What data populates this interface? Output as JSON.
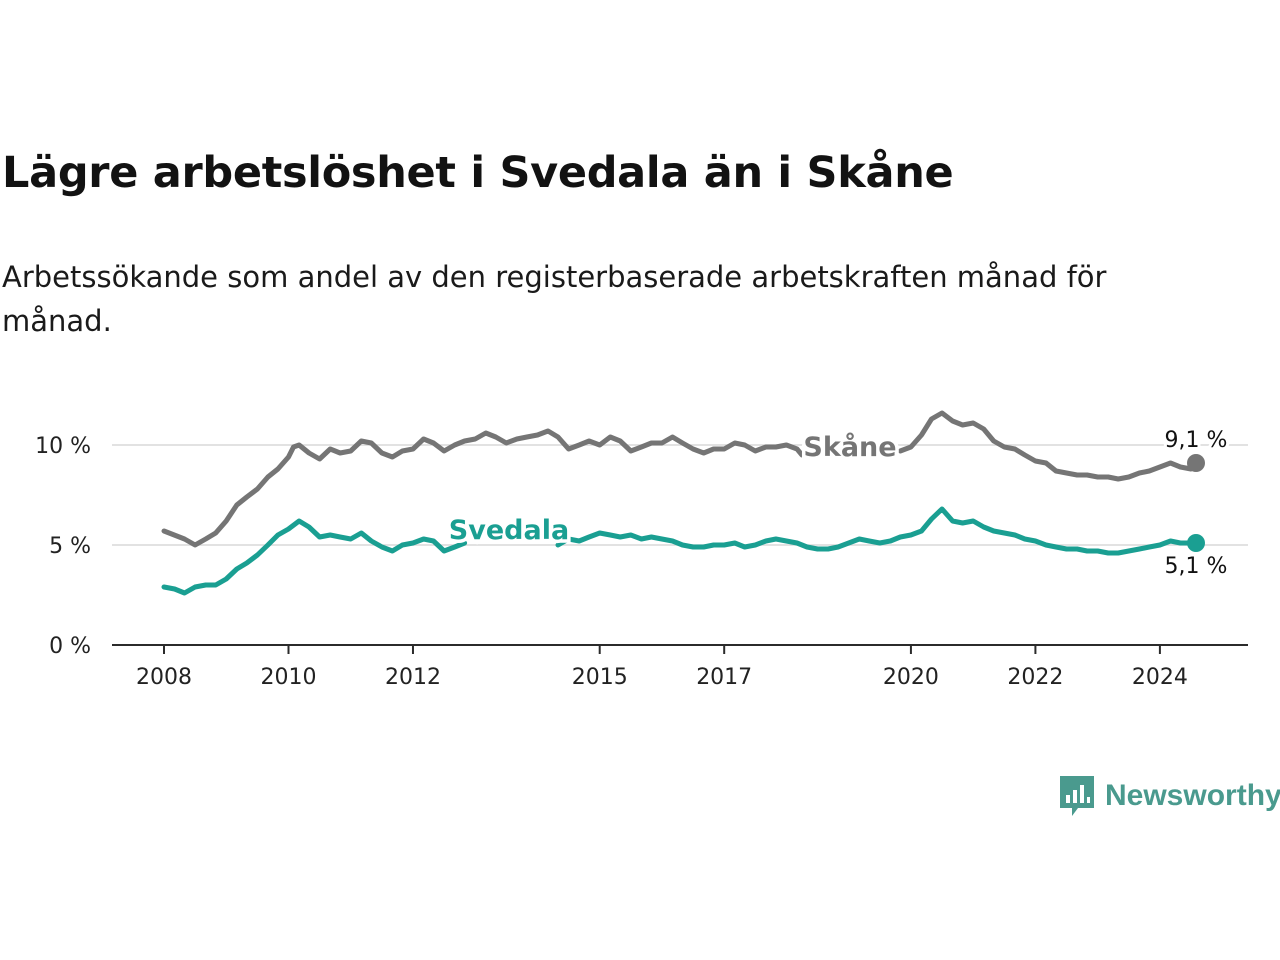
{
  "header": {
    "title": "Lägre arbetslöshet i Svedala än i Skåne",
    "subtitle": "Arbetssökande som andel av den registerbaserade arbetskraften månad för månad."
  },
  "brand": {
    "name": "Newsworthy",
    "icon": "newsworthy-logo-icon",
    "color": "#4a9a8e"
  },
  "chart_data": {
    "type": "line",
    "title": "Lägre arbetslöshet i Svedala än i Skåne",
    "subtitle": "Arbetssökande som andel av den registerbaserade arbetskraften månad för månad.",
    "xlabel": "",
    "ylabel": "",
    "ylim": [
      0,
      12
    ],
    "xlim": [
      2007.25,
      2025.5
    ],
    "yticks": [
      0,
      5,
      10
    ],
    "ytick_labels": [
      "0 %",
      "5 %",
      "10 %"
    ],
    "xticks": [
      2008,
      2010,
      2012,
      2015,
      2017,
      2020,
      2022,
      2024
    ],
    "xtick_labels": [
      "2008",
      "2010",
      "2012",
      "2015",
      "2017",
      "2020",
      "2022",
      "2024"
    ],
    "grid": true,
    "series": [
      {
        "name": "Skåne",
        "color": "#757575",
        "end_label": "9,1 %",
        "points": [
          [
            2008.0,
            5.7
          ],
          [
            2008.33,
            5.3
          ],
          [
            2008.5,
            5.0
          ],
          [
            2008.67,
            5.3
          ],
          [
            2008.83,
            5.6
          ],
          [
            2009.0,
            6.2
          ],
          [
            2009.17,
            7.0
          ],
          [
            2009.33,
            7.4
          ],
          [
            2009.5,
            7.8
          ],
          [
            2009.67,
            8.4
          ],
          [
            2009.83,
            8.8
          ],
          [
            2010.0,
            9.4
          ],
          [
            2010.08,
            9.9
          ],
          [
            2010.17,
            10.0
          ],
          [
            2010.33,
            9.6
          ],
          [
            2010.5,
            9.3
          ],
          [
            2010.67,
            9.8
          ],
          [
            2010.83,
            9.6
          ],
          [
            2011.0,
            9.7
          ],
          [
            2011.17,
            10.2
          ],
          [
            2011.33,
            10.1
          ],
          [
            2011.5,
            9.6
          ],
          [
            2011.67,
            9.4
          ],
          [
            2011.83,
            9.7
          ],
          [
            2012.0,
            9.8
          ],
          [
            2012.17,
            10.3
          ],
          [
            2012.33,
            10.1
          ],
          [
            2012.5,
            9.7
          ],
          [
            2012.67,
            10.0
          ],
          [
            2012.83,
            10.2
          ],
          [
            2013.0,
            10.3
          ],
          [
            2013.17,
            10.6
          ],
          [
            2013.33,
            10.4
          ],
          [
            2013.5,
            10.1
          ],
          [
            2013.67,
            10.3
          ],
          [
            2013.83,
            10.4
          ],
          [
            2014.0,
            10.5
          ],
          [
            2014.17,
            10.7
          ],
          [
            2014.33,
            10.4
          ],
          [
            2014.5,
            9.8
          ],
          [
            2014.67,
            10.0
          ],
          [
            2014.83,
            10.2
          ],
          [
            2015.0,
            10.0
          ],
          [
            2015.17,
            10.4
          ],
          [
            2015.33,
            10.2
          ],
          [
            2015.5,
            9.7
          ],
          [
            2015.67,
            9.9
          ],
          [
            2015.83,
            10.1
          ],
          [
            2016.0,
            10.1
          ],
          [
            2016.17,
            10.4
          ],
          [
            2016.33,
            10.1
          ],
          [
            2016.5,
            9.8
          ],
          [
            2016.67,
            9.6
          ],
          [
            2016.83,
            9.8
          ],
          [
            2017.0,
            9.8
          ],
          [
            2017.17,
            10.1
          ],
          [
            2017.33,
            10.0
          ],
          [
            2017.5,
            9.7
          ],
          [
            2017.67,
            9.9
          ],
          [
            2017.83,
            9.9
          ],
          [
            2018.0,
            10.0
          ],
          [
            2018.17,
            9.8
          ],
          [
            2018.25,
            9.5
          ]
        ],
        "points_after_label": [
          [
            2019.83,
            9.7
          ],
          [
            2020.0,
            9.9
          ],
          [
            2020.17,
            10.5
          ],
          [
            2020.33,
            11.3
          ],
          [
            2020.5,
            11.6
          ],
          [
            2020.67,
            11.2
          ],
          [
            2020.83,
            11.0
          ],
          [
            2021.0,
            11.1
          ],
          [
            2021.17,
            10.8
          ],
          [
            2021.33,
            10.2
          ],
          [
            2021.5,
            9.9
          ],
          [
            2021.67,
            9.8
          ],
          [
            2021.83,
            9.5
          ],
          [
            2022.0,
            9.2
          ],
          [
            2022.17,
            9.1
          ],
          [
            2022.33,
            8.7
          ],
          [
            2022.5,
            8.6
          ],
          [
            2022.67,
            8.5
          ],
          [
            2022.83,
            8.5
          ],
          [
            2023.0,
            8.4
          ],
          [
            2023.17,
            8.4
          ],
          [
            2023.33,
            8.3
          ],
          [
            2023.5,
            8.4
          ],
          [
            2023.67,
            8.6
          ],
          [
            2023.83,
            8.7
          ],
          [
            2024.0,
            8.9
          ],
          [
            2024.17,
            9.1
          ],
          [
            2024.33,
            8.9
          ],
          [
            2024.5,
            8.8
          ],
          [
            2024.58,
            9.1
          ]
        ]
      },
      {
        "name": "Svedala",
        "color": "#1a9f92",
        "end_label": "5,1 %",
        "points": [
          [
            2008.0,
            2.9
          ],
          [
            2008.17,
            2.8
          ],
          [
            2008.33,
            2.6
          ],
          [
            2008.5,
            2.9
          ],
          [
            2008.67,
            3.0
          ],
          [
            2008.83,
            3.0
          ],
          [
            2009.0,
            3.3
          ],
          [
            2009.17,
            3.8
          ],
          [
            2009.33,
            4.1
          ],
          [
            2009.5,
            4.5
          ],
          [
            2009.67,
            5.0
          ],
          [
            2009.83,
            5.5
          ],
          [
            2010.0,
            5.8
          ],
          [
            2010.17,
            6.2
          ],
          [
            2010.33,
            5.9
          ],
          [
            2010.5,
            5.4
          ],
          [
            2010.67,
            5.5
          ],
          [
            2010.83,
            5.4
          ],
          [
            2011.0,
            5.3
          ],
          [
            2011.17,
            5.6
          ],
          [
            2011.33,
            5.2
          ],
          [
            2011.5,
            4.9
          ],
          [
            2011.67,
            4.7
          ],
          [
            2011.83,
            5.0
          ],
          [
            2012.0,
            5.1
          ],
          [
            2012.17,
            5.3
          ],
          [
            2012.33,
            5.2
          ],
          [
            2012.5,
            4.7
          ],
          [
            2012.67,
            4.9
          ],
          [
            2012.83,
            5.1
          ]
        ],
        "points_after_label": [
          [
            2014.33,
            5.0
          ],
          [
            2014.5,
            5.3
          ],
          [
            2014.67,
            5.2
          ],
          [
            2014.83,
            5.4
          ],
          [
            2015.0,
            5.6
          ],
          [
            2015.17,
            5.5
          ],
          [
            2015.33,
            5.4
          ],
          [
            2015.5,
            5.5
          ],
          [
            2015.67,
            5.3
          ],
          [
            2015.83,
            5.4
          ],
          [
            2016.0,
            5.3
          ],
          [
            2016.17,
            5.2
          ],
          [
            2016.33,
            5.0
          ],
          [
            2016.5,
            4.9
          ],
          [
            2016.67,
            4.9
          ],
          [
            2016.83,
            5.0
          ],
          [
            2017.0,
            5.0
          ],
          [
            2017.17,
            5.1
          ],
          [
            2017.33,
            4.9
          ],
          [
            2017.5,
            5.0
          ],
          [
            2017.67,
            5.2
          ],
          [
            2017.83,
            5.3
          ],
          [
            2018.0,
            5.2
          ],
          [
            2018.17,
            5.1
          ],
          [
            2018.33,
            4.9
          ],
          [
            2018.5,
            4.8
          ],
          [
            2018.67,
            4.8
          ],
          [
            2018.83,
            4.9
          ],
          [
            2019.0,
            5.1
          ],
          [
            2019.17,
            5.3
          ],
          [
            2019.33,
            5.2
          ],
          [
            2019.5,
            5.1
          ],
          [
            2019.67,
            5.2
          ],
          [
            2019.83,
            5.4
          ],
          [
            2020.0,
            5.5
          ],
          [
            2020.17,
            5.7
          ],
          [
            2020.33,
            6.3
          ],
          [
            2020.5,
            6.8
          ],
          [
            2020.67,
            6.2
          ],
          [
            2020.83,
            6.1
          ],
          [
            2021.0,
            6.2
          ],
          [
            2021.17,
            5.9
          ],
          [
            2021.33,
            5.7
          ],
          [
            2021.5,
            5.6
          ],
          [
            2021.67,
            5.5
          ],
          [
            2021.83,
            5.3
          ],
          [
            2022.0,
            5.2
          ],
          [
            2022.17,
            5.0
          ],
          [
            2022.33,
            4.9
          ],
          [
            2022.5,
            4.8
          ],
          [
            2022.67,
            4.8
          ],
          [
            2022.83,
            4.7
          ],
          [
            2023.0,
            4.7
          ],
          [
            2023.17,
            4.6
          ],
          [
            2023.33,
            4.6
          ],
          [
            2023.5,
            4.7
          ],
          [
            2023.67,
            4.8
          ],
          [
            2023.83,
            4.9
          ],
          [
            2024.0,
            5.0
          ],
          [
            2024.17,
            5.2
          ],
          [
            2024.33,
            5.1
          ],
          [
            2024.58,
            5.1
          ]
        ]
      }
    ]
  }
}
